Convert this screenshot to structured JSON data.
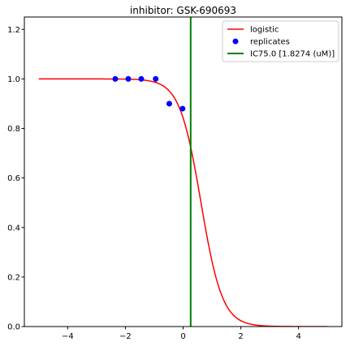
{
  "chart_data": {
    "type": "line",
    "title": "inhibitor: GSK-690693",
    "xlabel": "",
    "ylabel": "",
    "xlim": [
      -5.5,
      5.5
    ],
    "ylim": [
      0.0,
      1.25
    ],
    "x_ticks": [
      -4,
      -2,
      0,
      2,
      4
    ],
    "x_tick_labels": [
      "−4",
      "−2",
      "0",
      "2",
      "4"
    ],
    "y_ticks": [
      0.0,
      0.2,
      0.4,
      0.6,
      0.8,
      1.0,
      1.2
    ],
    "y_tick_labels": [
      "0.0",
      "0.2",
      "0.4",
      "0.6",
      "0.8",
      "1.0",
      "1.2"
    ],
    "grid": false,
    "legend_position": "top-right",
    "series": [
      {
        "name": "logistic",
        "kind": "line",
        "color": "#ff0000",
        "model": {
          "top": 1.0,
          "ic50_x": 0.62,
          "slope": 2.7
        },
        "x_range": [
          -5,
          5
        ]
      },
      {
        "name": "replicates",
        "kind": "scatter",
        "color": "#0000ff",
        "x": [
          -2.35,
          -1.9,
          -1.45,
          -0.95,
          -0.48,
          -0.02
        ],
        "y": [
          1.0,
          1.0,
          1.0,
          1.0,
          0.9,
          0.88
        ]
      },
      {
        "name": "IC75.0 [1.8274 (uM)]",
        "kind": "vline",
        "color": "#008000",
        "x": 0.262
      }
    ]
  }
}
